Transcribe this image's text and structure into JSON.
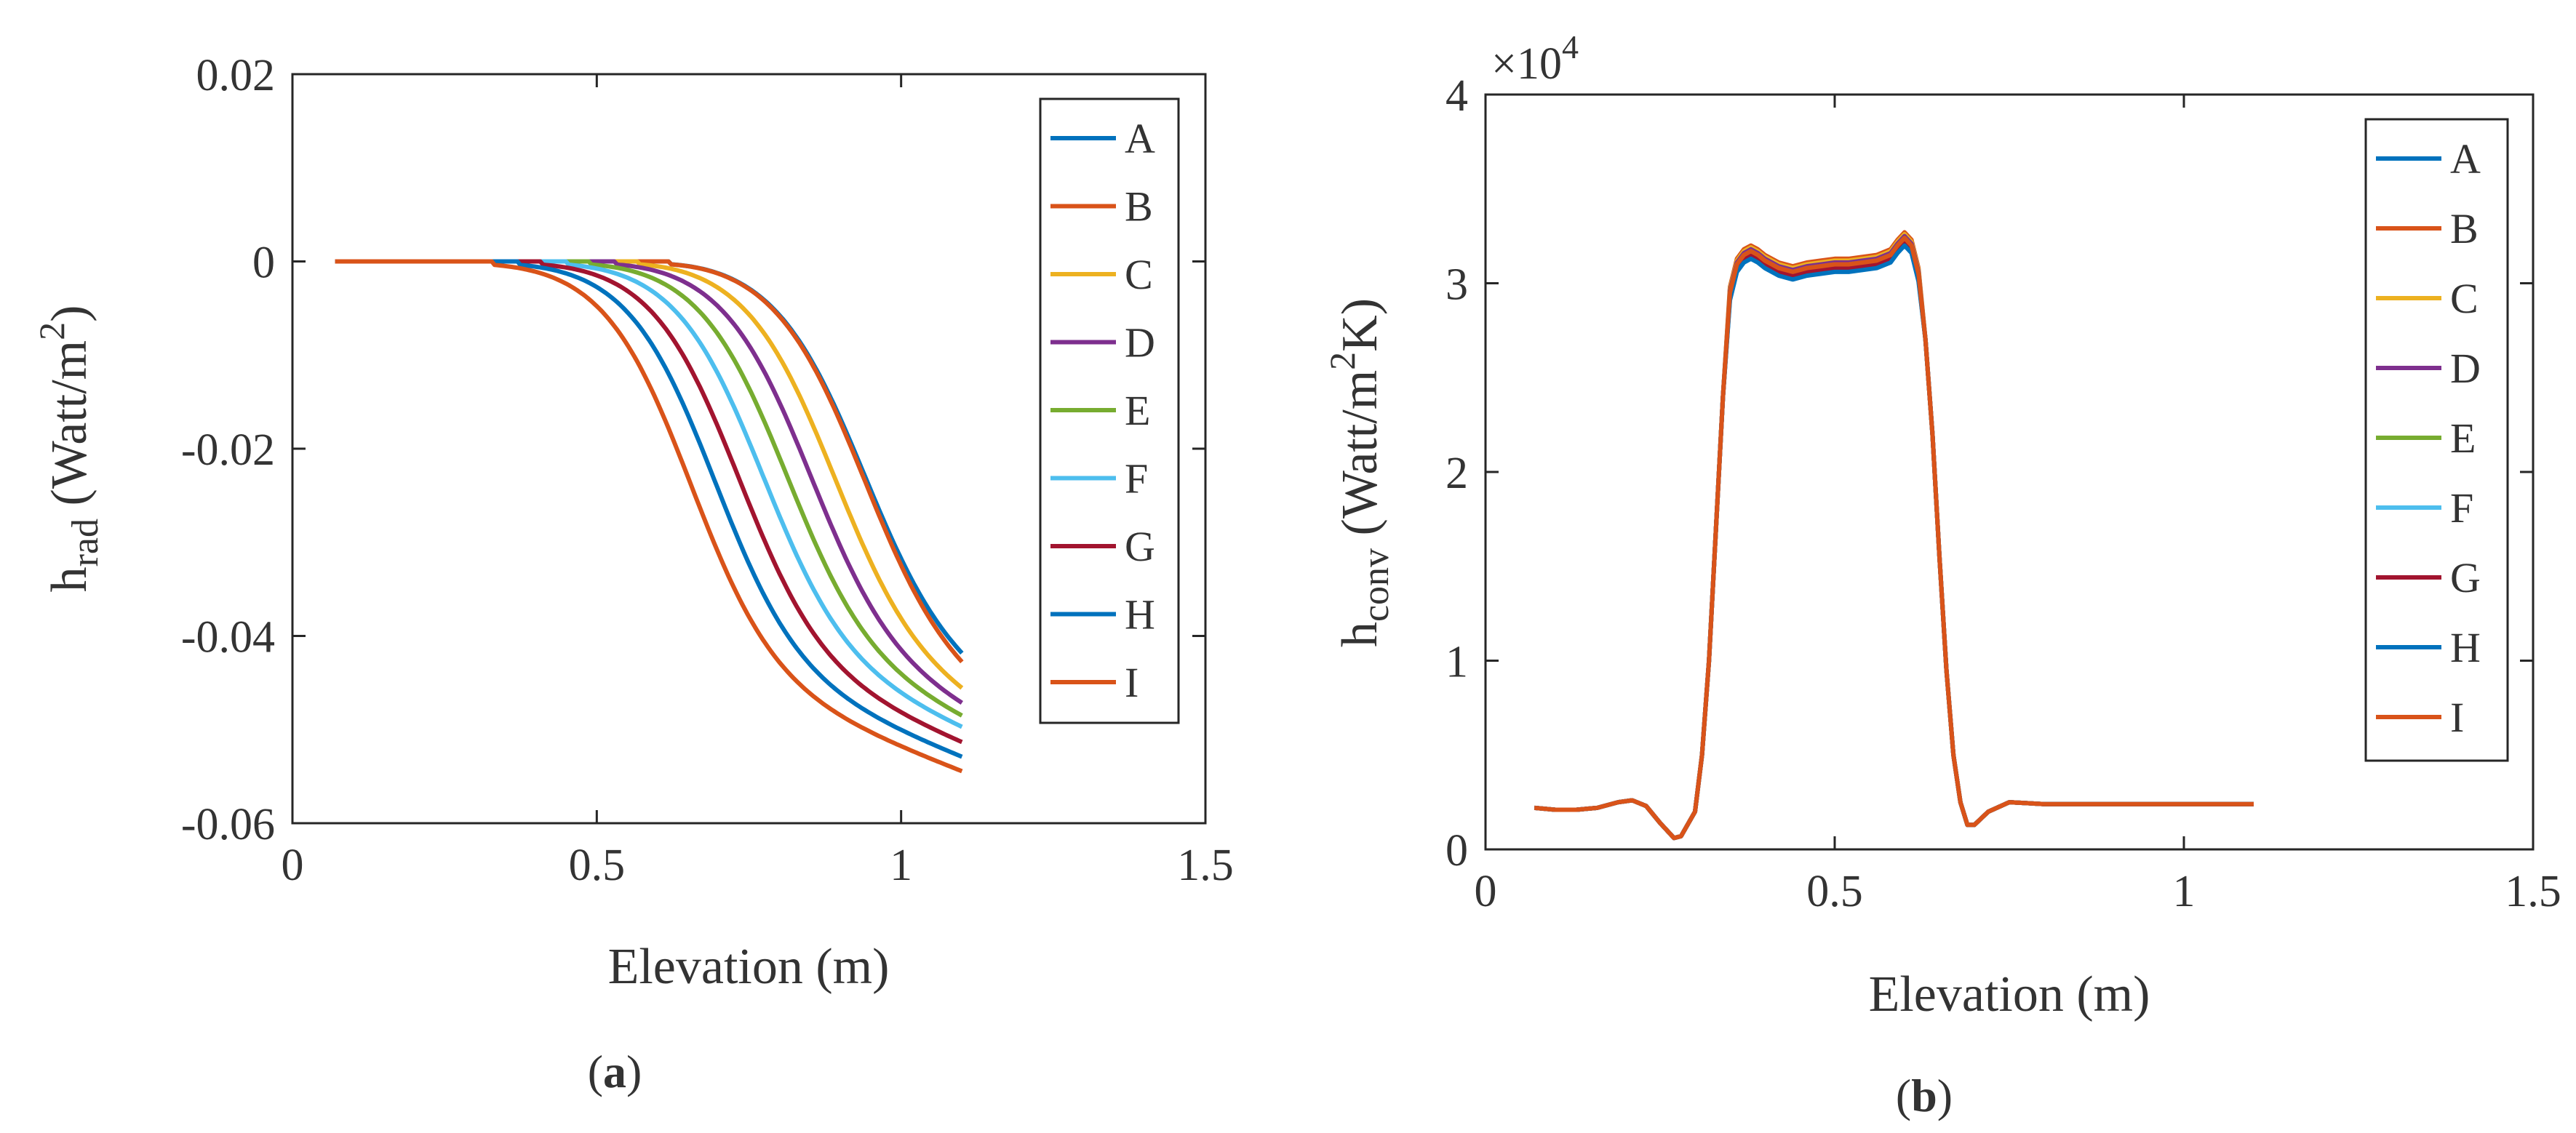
{
  "chart_data": [
    {
      "type": "line",
      "panel_label": "a",
      "xlabel": "Elevation (m)",
      "ylabel": {
        "main": "h",
        "sub": "rad",
        "unit_pre": " (Watt/m",
        "sup": "2",
        "unit_post": ")"
      },
      "xlim": [
        0,
        1.5
      ],
      "ylim": [
        -0.06,
        0.02
      ],
      "xticks": [
        0,
        0.5,
        1,
        1.5
      ],
      "xtick_labels": [
        "0",
        "0.5",
        "1",
        "1.5"
      ],
      "yticks": [
        0.02,
        0,
        -0.02,
        -0.04,
        -0.06
      ],
      "ytick_labels": [
        "0.02",
        "0",
        "-0.02",
        "-0.04",
        "-0.06"
      ],
      "grid": false,
      "legend_position": "top-right",
      "series": [
        {
          "name": "A",
          "color": "#0072BD",
          "onset": 0.94,
          "end": -0.0445
        },
        {
          "name": "B",
          "color": "#D95319",
          "onset": 0.94,
          "end": -0.0455
        },
        {
          "name": "C",
          "color": "#EDB120",
          "onset": 0.89,
          "end": -0.047
        },
        {
          "name": "D",
          "color": "#7E2F8E",
          "onset": 0.85,
          "end": -0.048
        },
        {
          "name": "E",
          "color": "#77AC30",
          "onset": 0.81,
          "end": -0.049
        },
        {
          "name": "F",
          "color": "#4DBEEE",
          "onset": 0.77,
          "end": -0.05
        },
        {
          "name": "G",
          "color": "#A2142F",
          "onset": 0.73,
          "end": -0.0515
        },
        {
          "name": "H",
          "color": "#0072BD",
          "onset": 0.69,
          "end": -0.053
        },
        {
          "name": "I",
          "color": "#D95319",
          "onset": 0.65,
          "end": -0.0545
        }
      ],
      "x_start": 0.07,
      "x_end": 1.1
    },
    {
      "type": "line",
      "panel_label": "b",
      "xlabel": "Elevation (m)",
      "ylabel": {
        "main": "h",
        "sub": "conv",
        "unit_pre": " (Watt/m",
        "sup": "2",
        "unit_post": "K)"
      },
      "multiplier": {
        "base": "×10",
        "exp": "4"
      },
      "xlim": [
        0,
        1.5
      ],
      "ylim": [
        0,
        4
      ],
      "xticks": [
        0,
        0.5,
        1,
        1.5
      ],
      "xtick_labels": [
        "0",
        "0.5",
        "1",
        "1.5"
      ],
      "yticks": [
        4,
        3,
        2,
        1,
        0
      ],
      "ytick_labels": [
        "4",
        "3",
        "2",
        "1",
        "0"
      ],
      "grid": false,
      "legend_position": "top-right",
      "series": [
        {
          "name": "A",
          "color": "#0072BD",
          "offset": -0.03
        },
        {
          "name": "B",
          "color": "#D95319",
          "offset": 0.03
        },
        {
          "name": "C",
          "color": "#EDB120",
          "offset": 0.02
        },
        {
          "name": "D",
          "color": "#7E2F8E",
          "offset": 0.01
        },
        {
          "name": "E",
          "color": "#77AC30",
          "offset": 0.0
        },
        {
          "name": "F",
          "color": "#4DBEEE",
          "offset": -0.01
        },
        {
          "name": "G",
          "color": "#A2142F",
          "offset": -0.02
        },
        {
          "name": "H",
          "color": "#0072BD",
          "offset": -0.04
        },
        {
          "name": "I",
          "color": "#D95319",
          "offset": 0.0
        }
      ],
      "profile_x": [
        0.07,
        0.1,
        0.13,
        0.16,
        0.19,
        0.21,
        0.23,
        0.25,
        0.27,
        0.28,
        0.3,
        0.31,
        0.32,
        0.33,
        0.34,
        0.35,
        0.36,
        0.37,
        0.38,
        0.39,
        0.4,
        0.42,
        0.44,
        0.46,
        0.48,
        0.5,
        0.52,
        0.54,
        0.56,
        0.58,
        0.59,
        0.6,
        0.61,
        0.62,
        0.63,
        0.64,
        0.65,
        0.66,
        0.67,
        0.68,
        0.69,
        0.7,
        0.72,
        0.75,
        0.8,
        0.9,
        1.0,
        1.1
      ],
      "profile_y": [
        0.22,
        0.21,
        0.21,
        0.22,
        0.25,
        0.26,
        0.23,
        0.14,
        0.06,
        0.07,
        0.2,
        0.5,
        1.0,
        1.7,
        2.4,
        2.95,
        3.1,
        3.15,
        3.17,
        3.15,
        3.12,
        3.08,
        3.06,
        3.08,
        3.09,
        3.1,
        3.1,
        3.11,
        3.12,
        3.15,
        3.2,
        3.24,
        3.2,
        3.05,
        2.7,
        2.2,
        1.55,
        0.95,
        0.5,
        0.25,
        0.13,
        0.13,
        0.2,
        0.25,
        0.24,
        0.24,
        0.24,
        0.24
      ]
    }
  ]
}
